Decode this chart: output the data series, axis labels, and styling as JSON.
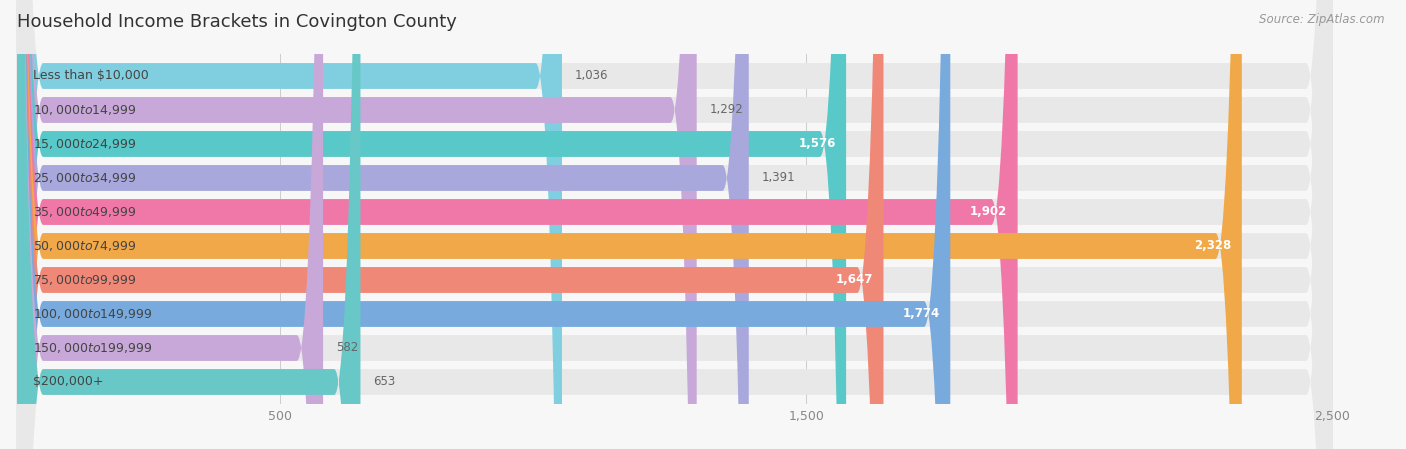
{
  "title": "Household Income Brackets in Covington County",
  "source": "Source: ZipAtlas.com",
  "categories": [
    "Less than $10,000",
    "$10,000 to $14,999",
    "$15,000 to $24,999",
    "$25,000 to $34,999",
    "$35,000 to $49,999",
    "$50,000 to $74,999",
    "$75,000 to $99,999",
    "$100,000 to $149,999",
    "$150,000 to $199,999",
    "$200,000+"
  ],
  "values": [
    1036,
    1292,
    1576,
    1391,
    1902,
    2328,
    1647,
    1774,
    582,
    653
  ],
  "colors": [
    "#80cfe0",
    "#c8a8d8",
    "#58c8c8",
    "#a8a8dc",
    "#f078a8",
    "#f0a848",
    "#f08878",
    "#78aade",
    "#c8a8d8",
    "#68c8c8"
  ],
  "xlim": [
    0,
    2600
  ],
  "x_axis_max": 2500,
  "xticks": [
    500,
    1500,
    2500
  ],
  "xtick_labels": [
    "500",
    "1,500",
    "2,500"
  ],
  "background_color": "#f7f7f7",
  "bar_bg_color": "#e8e8e8",
  "title_fontsize": 13,
  "label_fontsize": 9,
  "value_fontsize": 8.5,
  "source_fontsize": 8.5
}
